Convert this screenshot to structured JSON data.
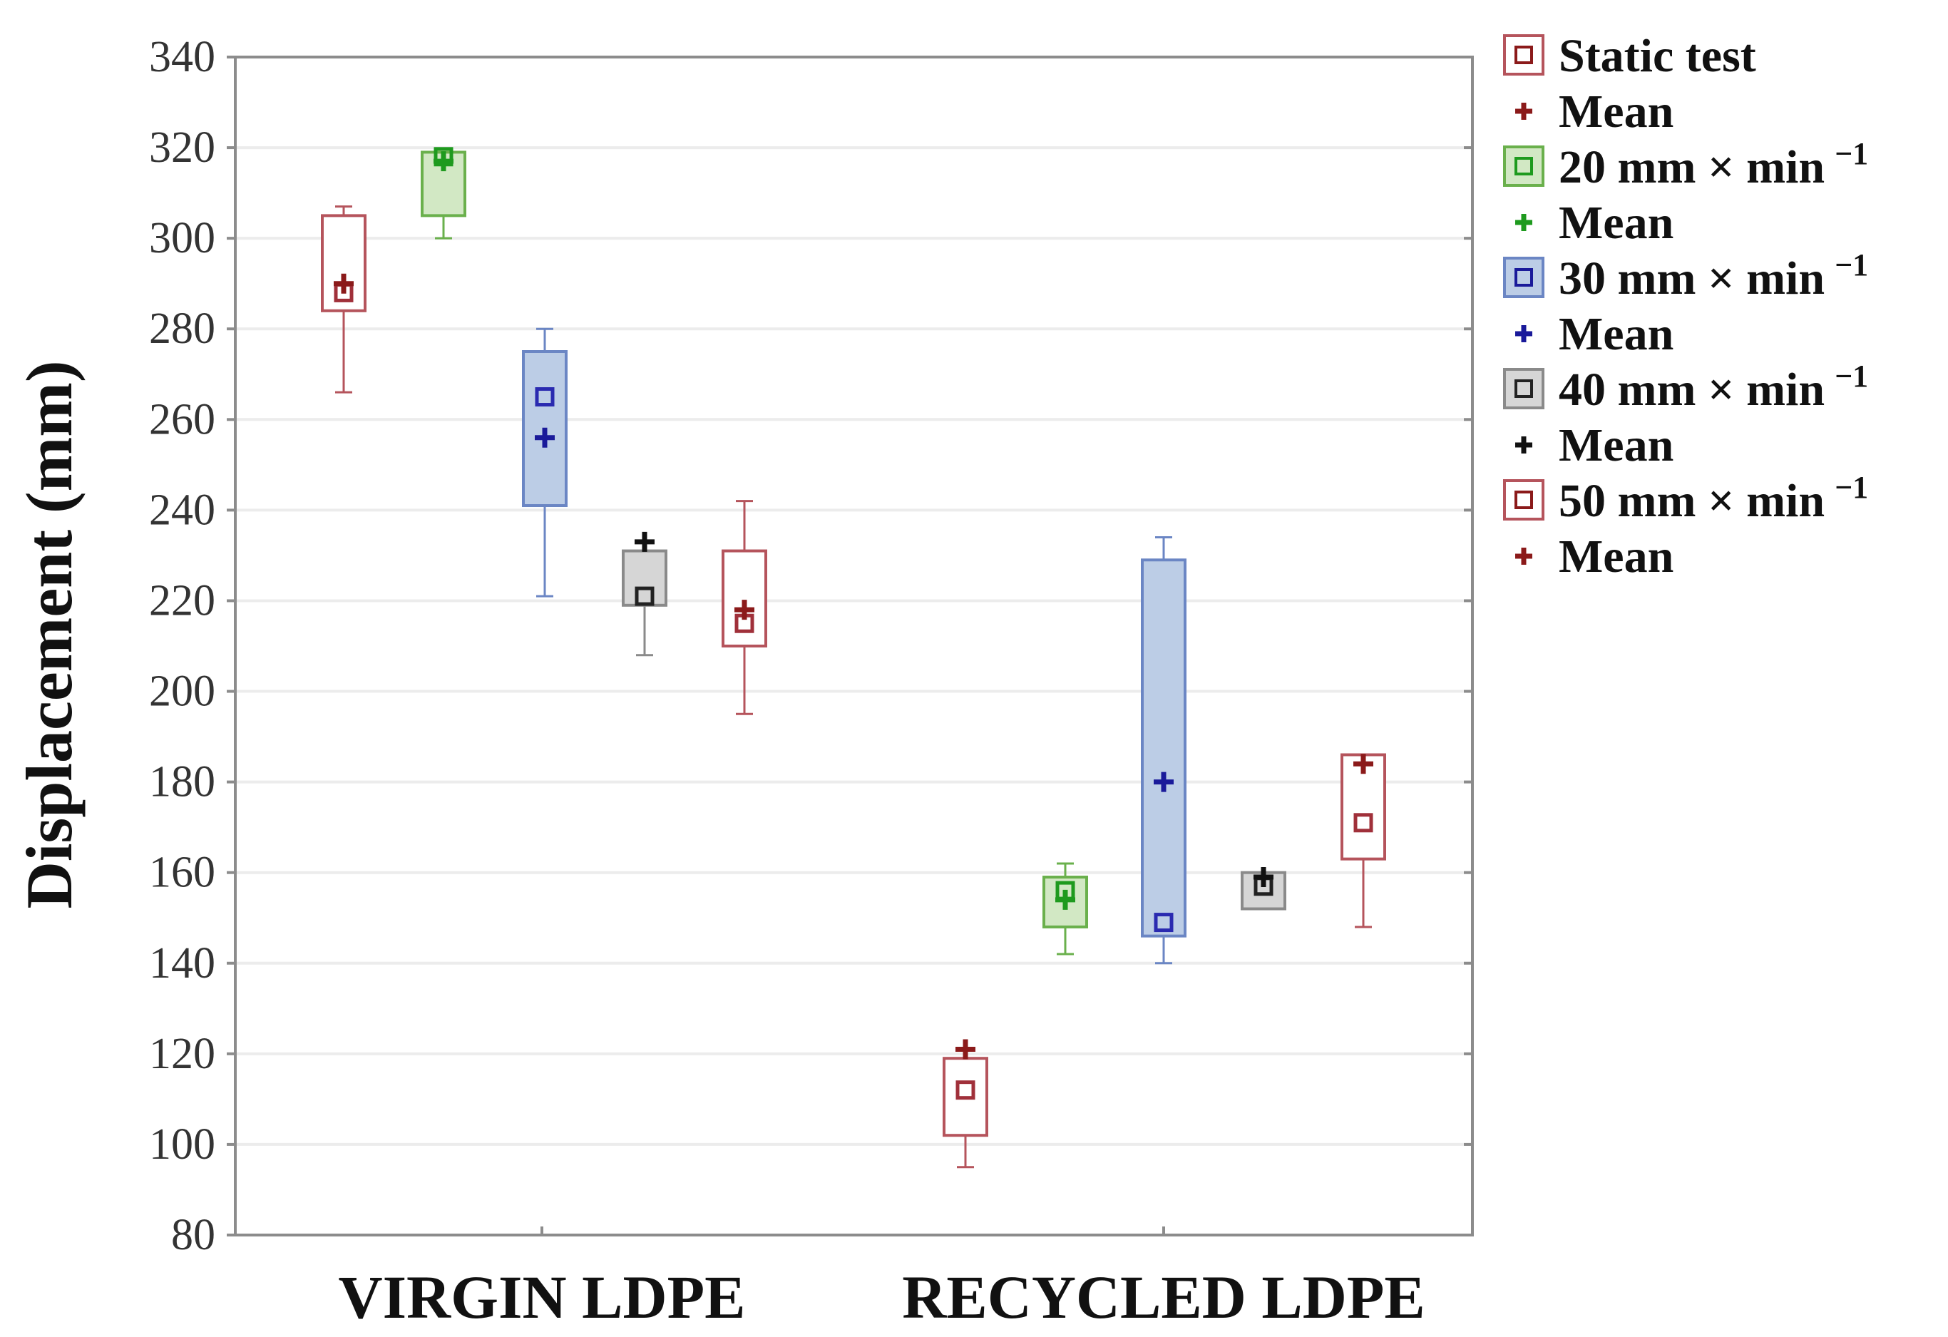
{
  "chart_data": {
    "type": "box",
    "title": "",
    "xlabel": "",
    "ylabel": "Displacement (mm)",
    "ylim": [
      80,
      340
    ],
    "yticks": [
      80,
      100,
      120,
      140,
      160,
      180,
      200,
      220,
      240,
      260,
      280,
      300,
      320,
      340
    ],
    "grid": true,
    "categories": [
      "VIRGIN LDPE",
      "RECYCLED LDPE"
    ],
    "series": [
      {
        "name": "Static test",
        "mean_label": "Mean",
        "color": "#b5545c",
        "fill": "#ffffff",
        "mean_color": "#8b1a1a",
        "boxes": [
          {
            "whisker_low": 266,
            "q1": 284,
            "median": 288,
            "q3": 305,
            "whisker_high": 307,
            "mean": 290
          },
          {
            "whisker_low": 95,
            "q1": 102,
            "median": 112,
            "q3": 119,
            "whisker_high": 119,
            "mean": 121
          }
        ]
      },
      {
        "name": "20 mm × min",
        "sup": "−1",
        "mean_label": "Mean",
        "color": "#6ab04c",
        "fill": "#d2e8c4",
        "mean_color": "#1e9a1e",
        "boxes": [
          {
            "whisker_low": 300,
            "q1": 305,
            "median": 318,
            "q3": 319,
            "whisker_high": 319,
            "mean": 317
          },
          {
            "whisker_low": 142,
            "q1": 148,
            "median": 156,
            "q3": 159,
            "whisker_high": 162,
            "mean": 154
          }
        ]
      },
      {
        "name": "30 mm × min",
        "sup": "−1",
        "mean_label": "Mean",
        "color": "#6b86c4",
        "fill": "#bccde6",
        "mean_color": "#1a1a9a",
        "boxes": [
          {
            "whisker_low": 221,
            "q1": 241,
            "median": 265,
            "q3": 275,
            "whisker_high": 280,
            "mean": 256
          },
          {
            "whisker_low": 140,
            "q1": 146,
            "median": 149,
            "q3": 229,
            "whisker_high": 234,
            "mean": 180
          }
        ]
      },
      {
        "name": "40 mm × min",
        "sup": "−1",
        "mean_label": "Mean",
        "color": "#8a8a8a",
        "fill": "#d6d6d6",
        "mean_color": "#111111",
        "boxes": [
          {
            "whisker_low": 208,
            "q1": 219,
            "median": 221,
            "q3": 231,
            "whisker_high": 231,
            "mean": 233
          },
          {
            "whisker_low": 152,
            "q1": 152,
            "median": 157,
            "q3": 160,
            "whisker_high": 160,
            "mean": 159
          }
        ]
      },
      {
        "name": "50 mm × min",
        "sup": "−1",
        "mean_label": "Mean",
        "color": "#b5545c",
        "fill": "#ffffff",
        "mean_color": "#8b1a1a",
        "boxes": [
          {
            "whisker_low": 195,
            "q1": 210,
            "median": 215,
            "q3": 231,
            "whisker_high": 242,
            "mean": 218
          },
          {
            "whisker_low": 148,
            "q1": 163,
            "median": 171,
            "q3": 186,
            "whisker_high": 186,
            "mean": 184
          }
        ]
      }
    ]
  }
}
